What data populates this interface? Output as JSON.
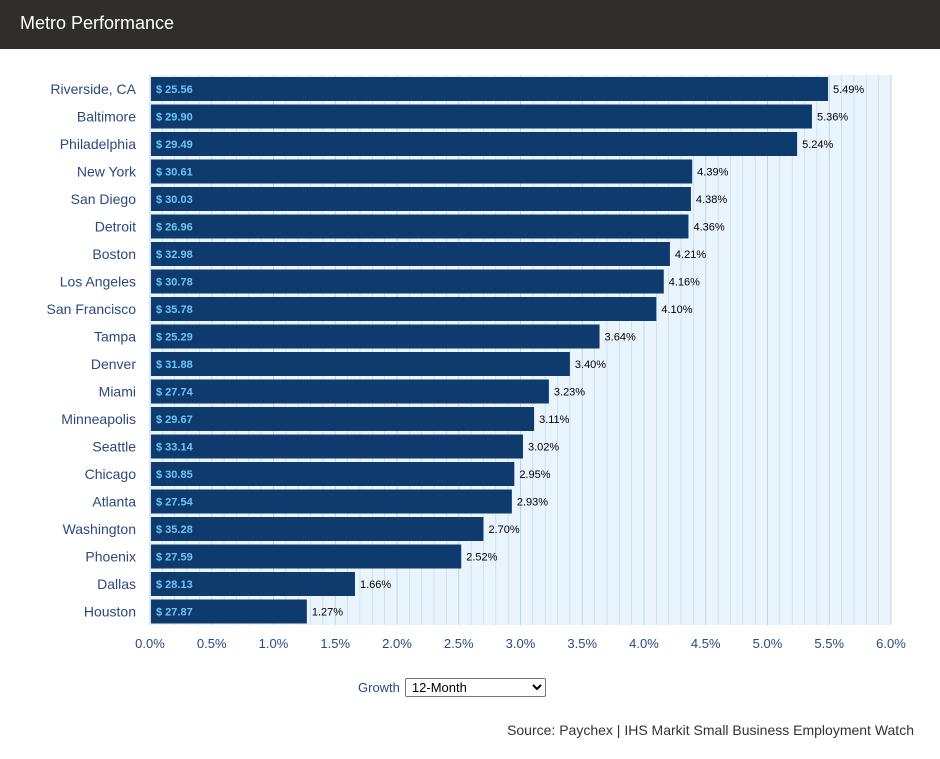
{
  "header": {
    "title": "Metro Performance"
  },
  "controls": {
    "growth_label": "Growth",
    "growth_selected": "12-Month"
  },
  "source": "Source: Paychex | IHS Markit Small Business Employment Watch",
  "colors": {
    "bar": "#0f3a6e",
    "bar_label": "#6ec6f5",
    "plot_background": "#eaf4fc",
    "gridline": "#b9d6ee",
    "axis_text": "#2a4a7b",
    "header_bg": "#302d2c"
  },
  "chart_data": {
    "type": "bar",
    "orientation": "horizontal",
    "categories": [
      "Riverside, CA",
      "Baltimore",
      "Philadelphia",
      "New York",
      "San Diego",
      "Detroit",
      "Boston",
      "Los Angeles",
      "San Francisco",
      "Tampa",
      "Denver",
      "Miami",
      "Minneapolis",
      "Seattle",
      "Chicago",
      "Atlanta",
      "Washington",
      "Phoenix",
      "Dallas",
      "Houston"
    ],
    "values": [
      5.49,
      5.36,
      5.24,
      4.39,
      4.38,
      4.36,
      4.21,
      4.16,
      4.1,
      3.64,
      3.4,
      3.23,
      3.11,
      3.02,
      2.95,
      2.93,
      2.7,
      2.52,
      1.66,
      1.27
    ],
    "value_labels": [
      "5.49%",
      "5.36%",
      "5.24%",
      "4.39%",
      "4.38%",
      "4.36%",
      "4.21%",
      "4.16%",
      "4.10%",
      "3.64%",
      "3.40%",
      "3.23%",
      "3.11%",
      "3.02%",
      "2.95%",
      "2.93%",
      "2.70%",
      "2.52%",
      "1.66%",
      "1.27%"
    ],
    "wage_labels": [
      "$ 25.56",
      "$ 29.90",
      "$ 29.49",
      "$ 30.61",
      "$ 30.03",
      "$ 26.96",
      "$ 32.98",
      "$ 30.78",
      "$ 35.78",
      "$ 25.29",
      "$ 31.88",
      "$ 27.74",
      "$ 29.67",
      "$ 33.14",
      "$ 30.85",
      "$ 27.54",
      "$ 35.28",
      "$ 27.59",
      "$ 28.13",
      "$ 27.87"
    ],
    "xlim": [
      0,
      6
    ],
    "xticks": [
      "0.0%",
      "0.5%",
      "1.0%",
      "1.5%",
      "2.0%",
      "2.5%",
      "3.0%",
      "3.5%",
      "4.0%",
      "4.5%",
      "5.0%",
      "5.5%",
      "6.0%"
    ],
    "title": "",
    "xlabel": "",
    "ylabel": "",
    "grid": true,
    "legend": "none"
  }
}
